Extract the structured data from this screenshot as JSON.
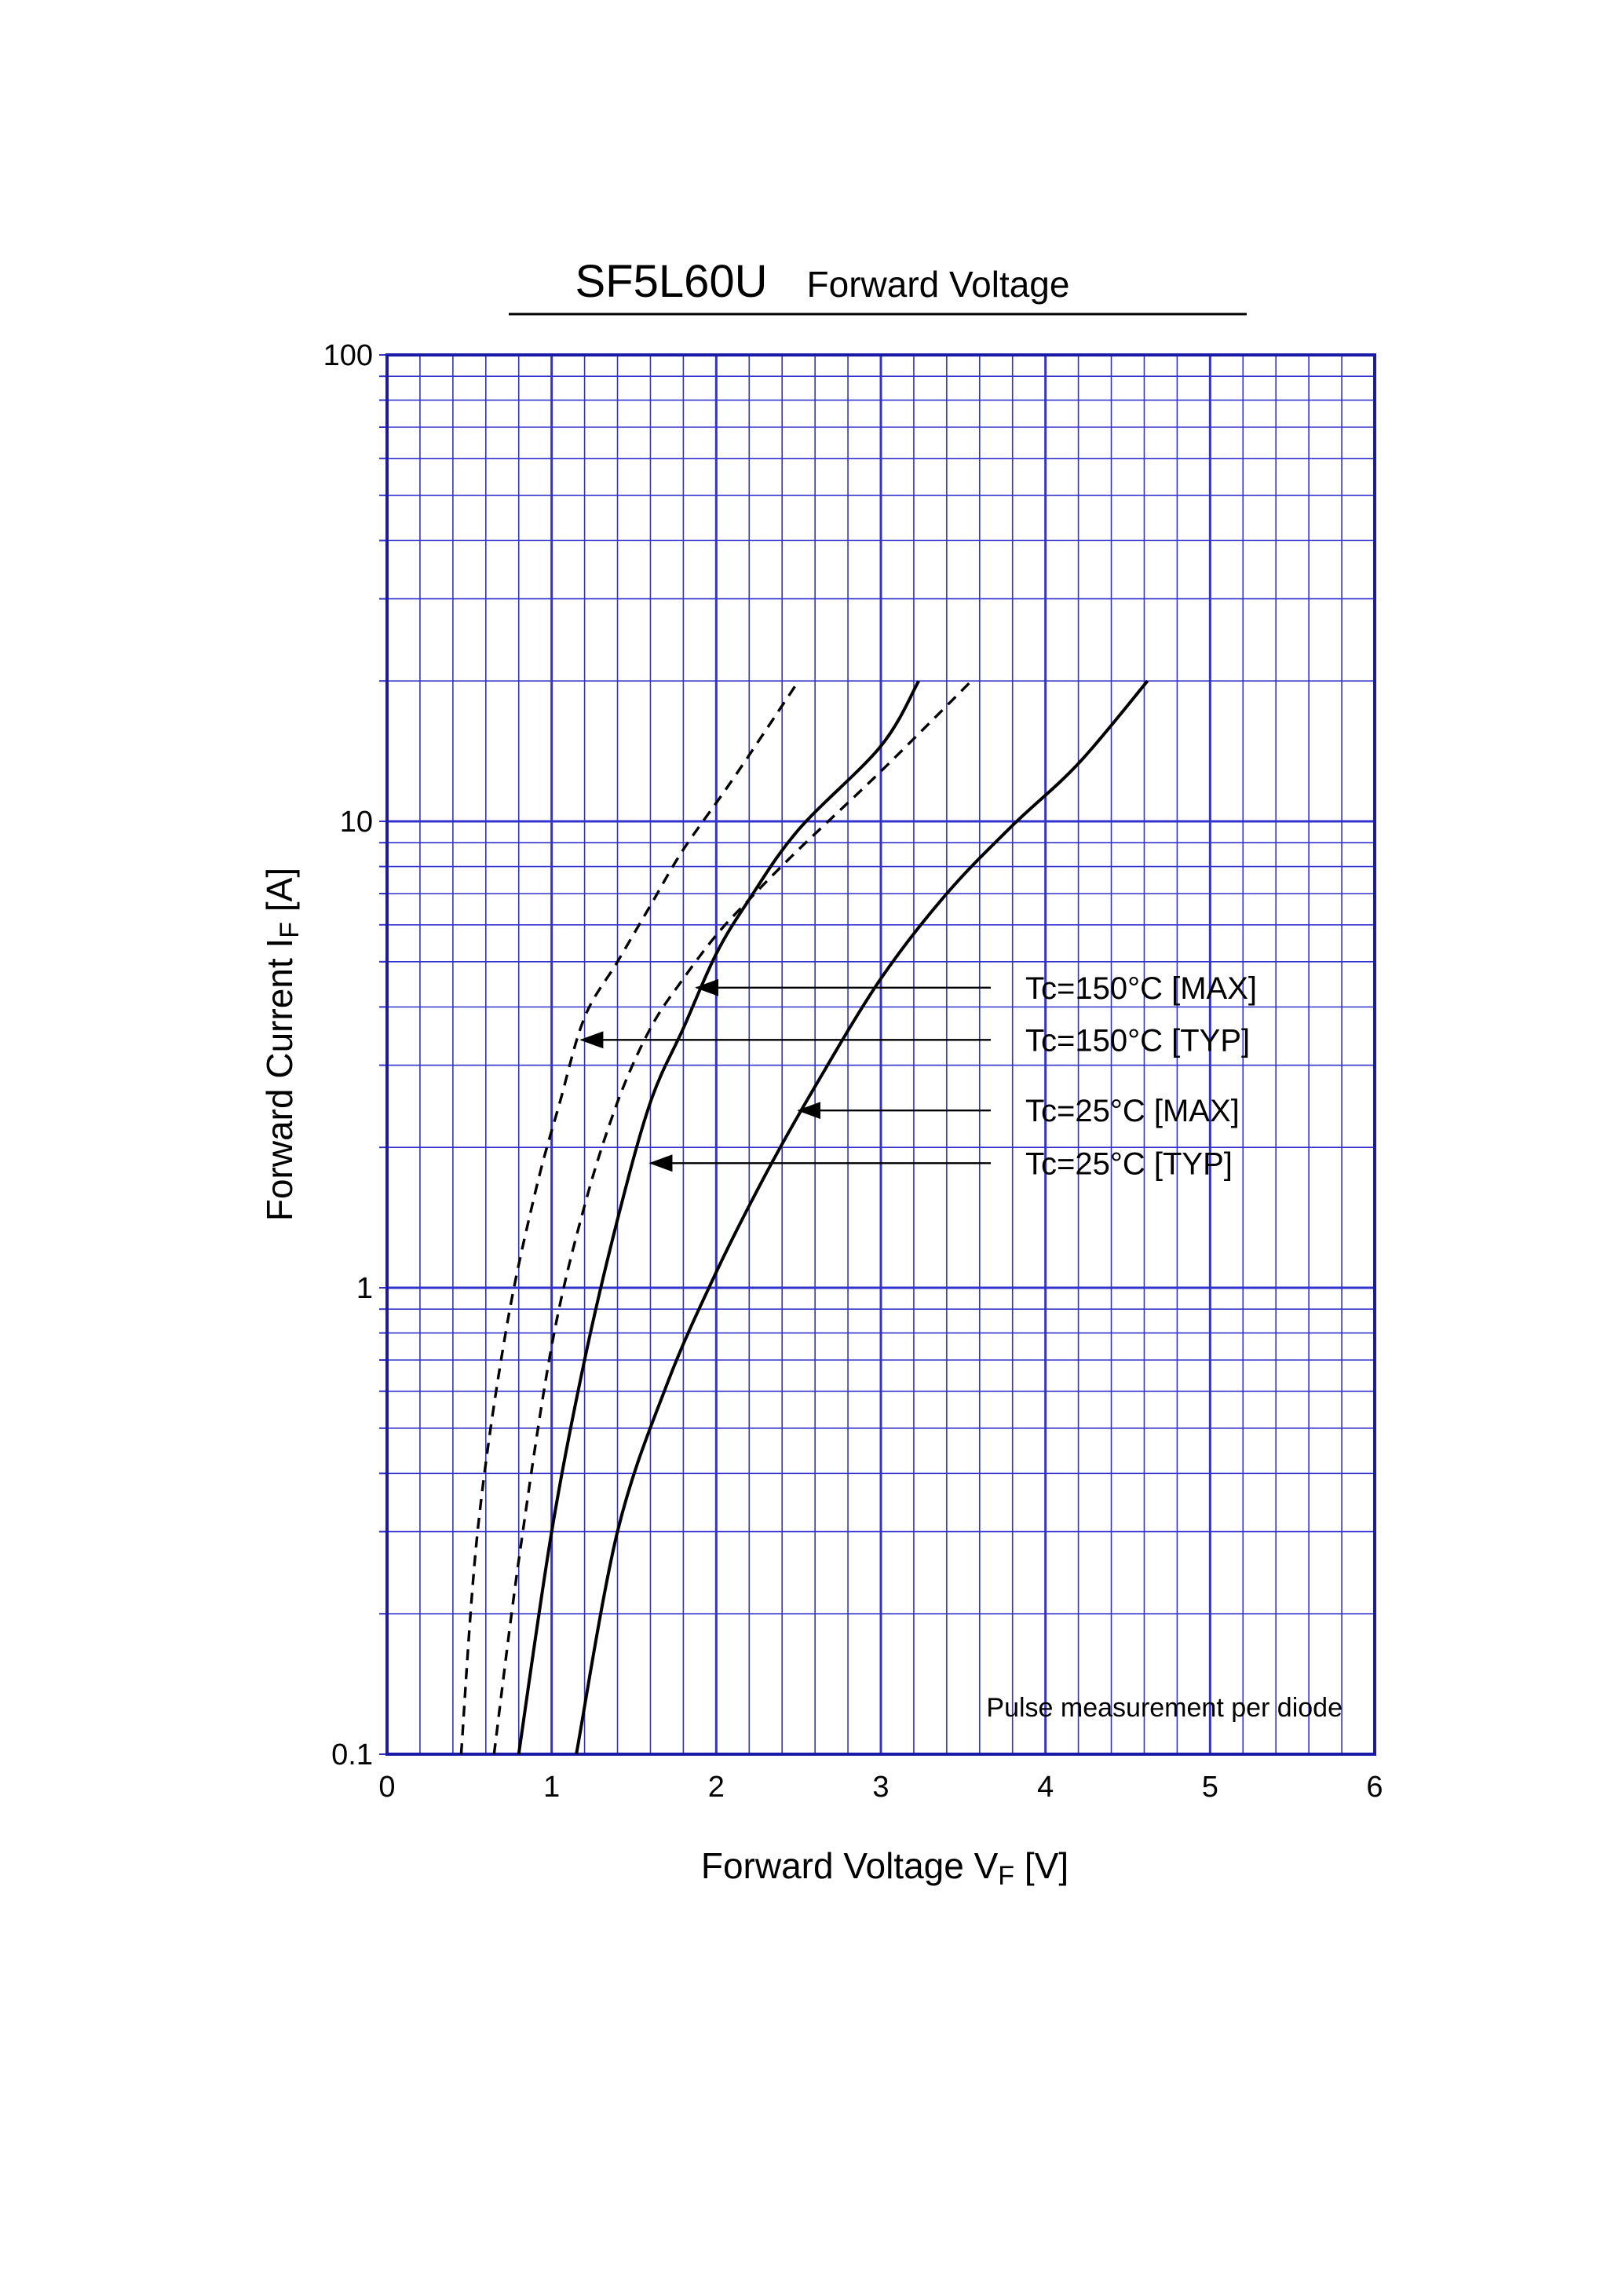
{
  "chart_data": {
    "type": "line",
    "title": "SF5L60U",
    "subtitle": "Forward  Voltage",
    "xlabel": {
      "main": "Forward Voltage  V",
      "sub": "F",
      "unit": "  [V]"
    },
    "ylabel": {
      "main": "Forward Current  I",
      "sub": "F",
      "unit": "  [A]"
    },
    "xlim": [
      0,
      6
    ],
    "ylim": [
      0.1,
      100
    ],
    "y_scale": "log",
    "grid": true,
    "x_ticks": [
      "0",
      "1",
      "2",
      "3",
      "4",
      "5",
      "6"
    ],
    "y_ticks": [
      {
        "value": 0.1,
        "label": "0.1"
      },
      {
        "value": 1,
        "label": "1"
      },
      {
        "value": 10,
        "label": "10"
      },
      {
        "value": 100,
        "label": "100"
      }
    ],
    "note": "Pulse  measurement  per  diode",
    "series": [
      {
        "name": "Tc=150°C [MAX]",
        "dash": false,
        "points": [
          [
            0.8,
            0.1
          ],
          [
            1.0,
            0.3
          ],
          [
            1.2,
            0.7
          ],
          [
            1.4,
            1.4
          ],
          [
            1.6,
            2.5
          ],
          [
            1.8,
            3.6
          ],
          [
            2.0,
            5.2
          ],
          [
            2.2,
            6.8
          ],
          [
            2.5,
            9.6
          ],
          [
            3.0,
            14.5
          ],
          [
            3.23,
            20
          ]
        ]
      },
      {
        "name": "Tc=150°C [TYP]",
        "dash": true,
        "points": [
          [
            0.45,
            0.1
          ],
          [
            0.55,
            0.3
          ],
          [
            0.72,
            0.8
          ],
          [
            0.9,
            1.6
          ],
          [
            1.05,
            2.5
          ],
          [
            1.2,
            3.8
          ],
          [
            1.4,
            5.0
          ],
          [
            1.6,
            6.6
          ],
          [
            1.8,
            8.7
          ],
          [
            2.1,
            12.3
          ],
          [
            2.5,
            20
          ]
        ]
      },
      {
        "name": "Tc=25°C [MAX]",
        "dash": false,
        "points": [
          [
            1.15,
            0.1
          ],
          [
            1.4,
            0.3
          ],
          [
            1.7,
            0.62
          ],
          [
            2.0,
            1.08
          ],
          [
            2.3,
            1.75
          ],
          [
            2.6,
            2.7
          ],
          [
            3.0,
            4.6
          ],
          [
            3.4,
            7.0
          ],
          [
            3.8,
            9.8
          ],
          [
            4.2,
            13.3
          ],
          [
            4.62,
            20
          ]
        ]
      },
      {
        "name": "Tc=25°C [TYP]",
        "dash": true,
        "points": [
          [
            0.65,
            0.1
          ],
          [
            0.8,
            0.26
          ],
          [
            1.0,
            0.75
          ],
          [
            1.2,
            1.5
          ],
          [
            1.4,
            2.5
          ],
          [
            1.6,
            3.6
          ],
          [
            1.8,
            4.6
          ],
          [
            2.0,
            5.7
          ],
          [
            2.2,
            6.8
          ],
          [
            2.5,
            8.7
          ],
          [
            3.0,
            12.8
          ],
          [
            3.55,
            20
          ]
        ]
      }
    ],
    "annotations": [
      {
        "text": "Tc=150°C [MAX]",
        "arrow_to": [
          1.88,
          4.4
        ]
      },
      {
        "text": "Tc=150°C [TYP]",
        "arrow_to": [
          1.18,
          3.4
        ]
      },
      {
        "text": "Tc=25°C [MAX]",
        "arrow_to": [
          2.5,
          2.4
        ]
      },
      {
        "text": "Tc=25°C [TYP]",
        "arrow_to": [
          1.6,
          1.85
        ]
      }
    ],
    "colors": {
      "grid": "#3333cc",
      "frame": "#1a1aa8",
      "curve": "#000000"
    }
  }
}
